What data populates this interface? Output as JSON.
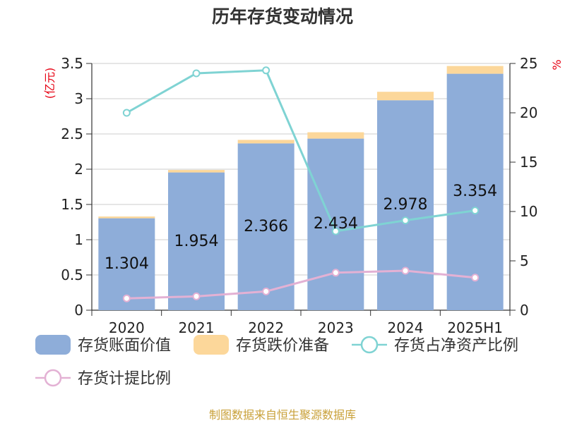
{
  "title": "历年存货变动情况",
  "source": "制图数据来自恒生聚源数据库",
  "colors": {
    "book": "#8eadd9",
    "reserve": "#fcd79a",
    "ratio_net": "#7fd3d3",
    "ratio_provision": "#e3b1d4",
    "unit": "#e60012",
    "source": "#c9a13a"
  },
  "chart_data": {
    "type": "bar",
    "categories": [
      "2020",
      "2021",
      "2022",
      "2023",
      "2024",
      "2025H1"
    ],
    "left_axis": {
      "unit": "(亿元)",
      "ylim": [
        0,
        3.5
      ],
      "ticks": [
        "0",
        "0.5",
        "1",
        "1.5",
        "2",
        "2.5",
        "3",
        "3.5"
      ]
    },
    "right_axis": {
      "unit": "%",
      "ylim": [
        0,
        25
      ],
      "ticks": [
        "0",
        "5",
        "10",
        "15",
        "20",
        "25"
      ]
    },
    "series": [
      {
        "name": "存货账面价值",
        "kind": "bar",
        "axis": "left",
        "values": [
          1.304,
          1.954,
          2.366,
          2.434,
          2.978,
          3.354
        ],
        "labels": [
          "1.304",
          "1.954",
          "2.366",
          "2.434",
          "2.978",
          "3.354"
        ]
      },
      {
        "name": "存货跌价准备",
        "kind": "bar-stack",
        "axis": "left",
        "values": [
          0.025,
          0.035,
          0.05,
          0.09,
          0.12,
          0.11
        ]
      },
      {
        "name": "存货占净资产比例",
        "kind": "line",
        "axis": "right",
        "values": [
          20.0,
          24.0,
          24.3,
          8.0,
          9.1,
          10.1
        ]
      },
      {
        "name": "存货计提比例",
        "kind": "line",
        "axis": "right",
        "values": [
          1.2,
          1.4,
          1.9,
          3.8,
          4.0,
          3.3
        ]
      }
    ],
    "grid": true,
    "legend_position": "bottom"
  }
}
